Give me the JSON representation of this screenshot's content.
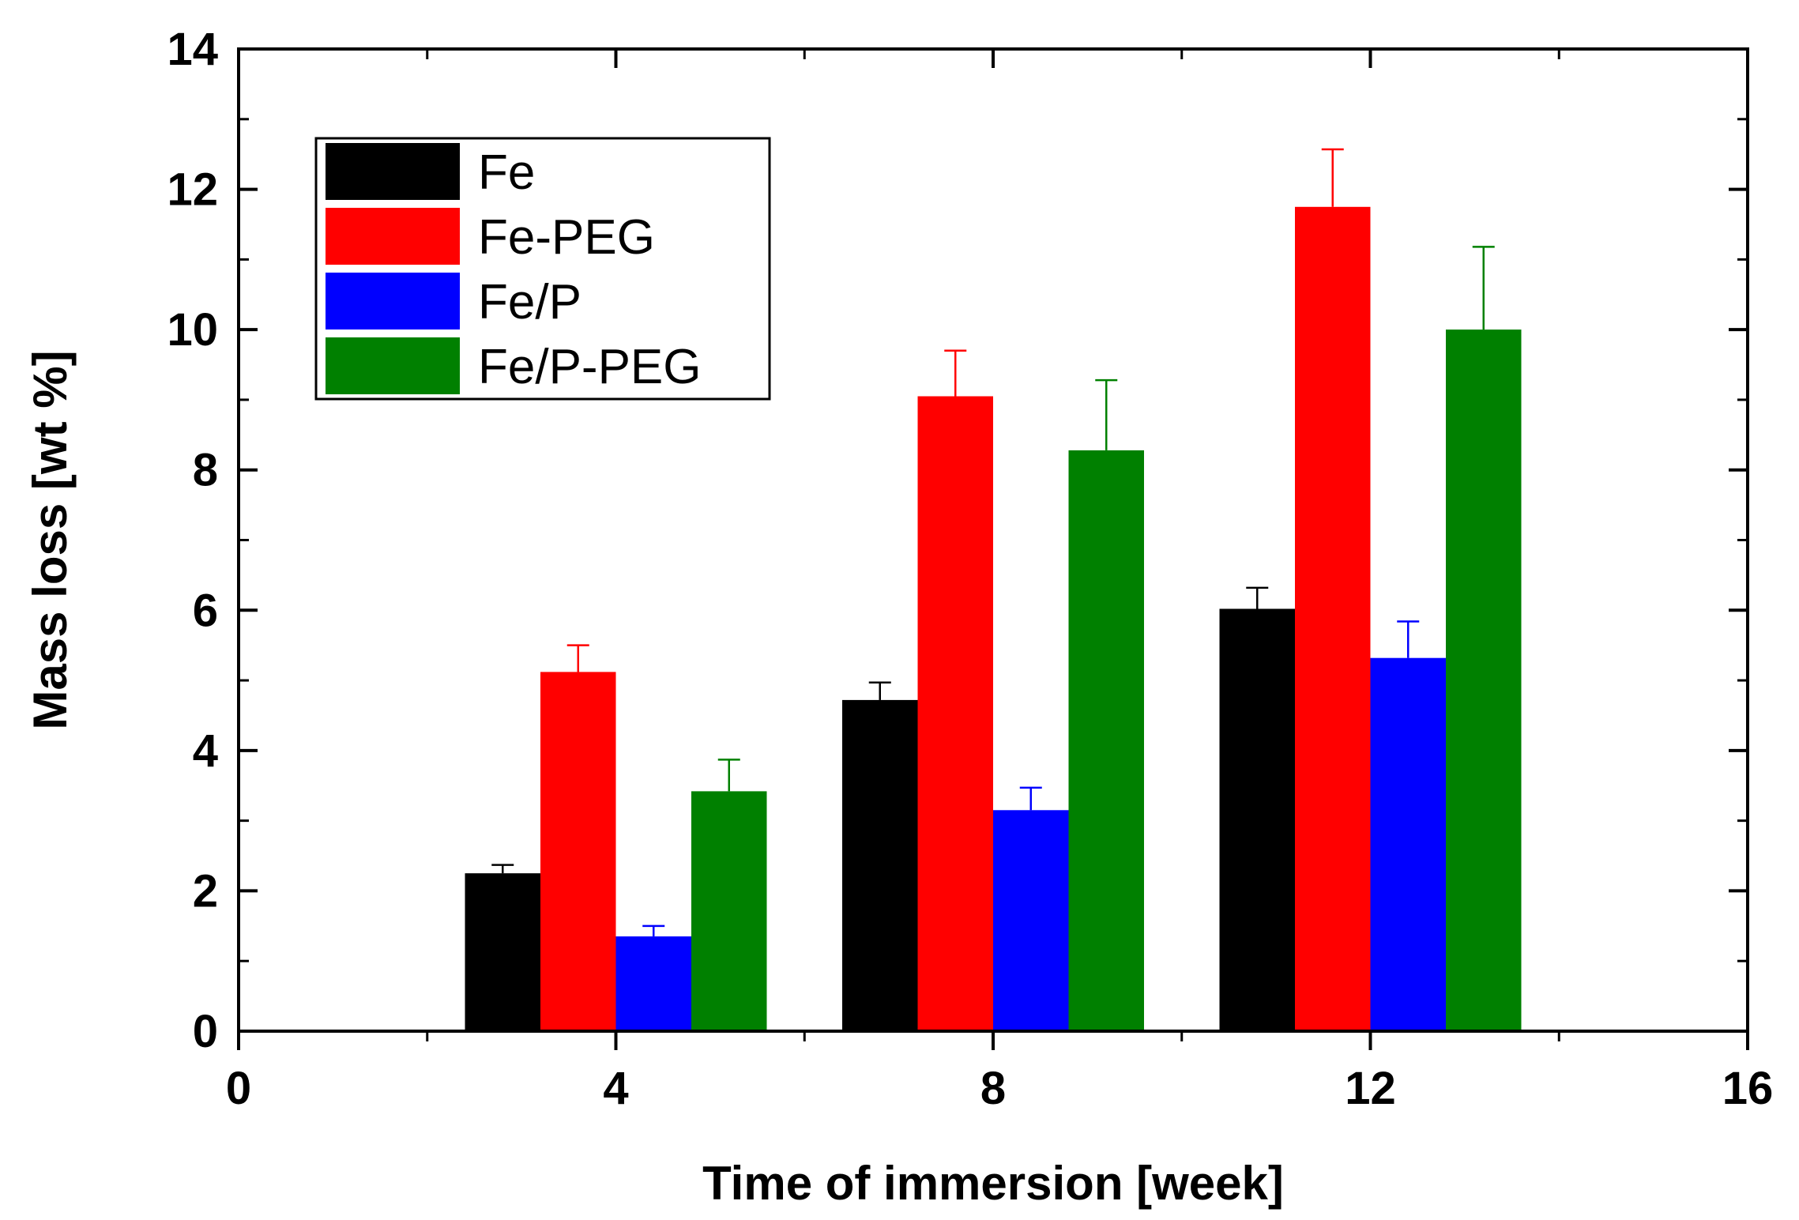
{
  "chart_data": {
    "type": "bar",
    "title": "",
    "xlabel": "Time of immersion [week]",
    "ylabel": "Mass loss  [wt %]",
    "xlim": [
      0,
      16
    ],
    "ylim": [
      0,
      14
    ],
    "x_ticks": [
      0,
      4,
      8,
      12,
      16
    ],
    "x_tick_labels": [
      "0",
      "4",
      "8",
      "12",
      "16"
    ],
    "y_ticks": [
      0,
      2,
      4,
      6,
      8,
      10,
      12,
      14
    ],
    "y_tick_labels": [
      "0",
      "2",
      "4",
      "6",
      "8",
      "10",
      "12",
      "14"
    ],
    "categories": [
      4,
      8,
      12
    ],
    "legend_position": "top-left",
    "grid": false,
    "series": [
      {
        "name": "Fe",
        "color": "#000000",
        "values": [
          2.25,
          4.72,
          6.02
        ],
        "errors": [
          0.12,
          0.25,
          0.3
        ]
      },
      {
        "name": "Fe-PEG",
        "color": "#ff0000",
        "values": [
          5.12,
          9.05,
          11.75
        ],
        "errors": [
          0.38,
          0.65,
          0.82
        ]
      },
      {
        "name": "Fe/P",
        "color": "#0000ff",
        "values": [
          1.35,
          3.15,
          5.32
        ],
        "errors": [
          0.15,
          0.32,
          0.52
        ]
      },
      {
        "name": "Fe/P-PEG",
        "color": "#008000",
        "values": [
          3.42,
          8.28,
          10.0
        ],
        "errors": [
          0.45,
          1.0,
          1.18
        ]
      }
    ]
  }
}
